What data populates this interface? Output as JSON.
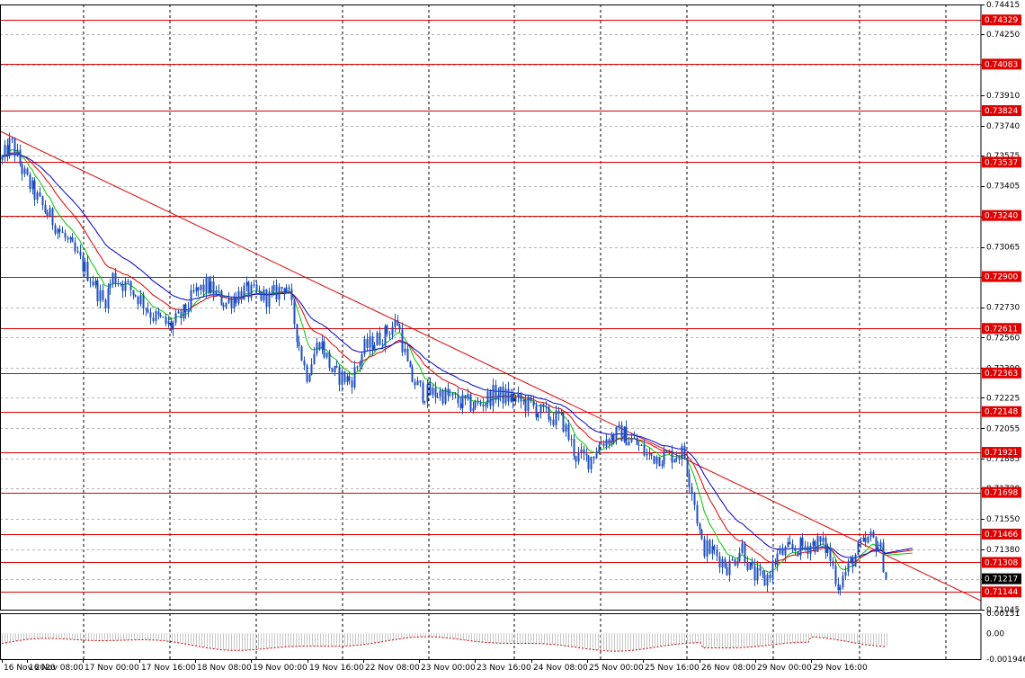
{
  "chart_data": {
    "type": "candlestick",
    "price_axis": {
      "ylim": [
        0.71045,
        0.74415
      ],
      "ticks": [
        "0.74415",
        "0.74250",
        "0.74080",
        "0.73910",
        "0.73740",
        "0.73575",
        "0.73405",
        "0.73235",
        "0.73065",
        "0.72900",
        "0.72730",
        "0.72560",
        "0.72390",
        "0.72225",
        "0.72055",
        "0.71885",
        "0.71720",
        "0.71550",
        "0.71380",
        "0.71215",
        "0.71045"
      ]
    },
    "x_ticks": [
      "16 Nov 2020",
      "16 Nov 08:00",
      "17 Nov 00:00",
      "17 Nov 16:00",
      "18 Nov 08:00",
      "19 Nov 00:00",
      "19 Nov 16:00",
      "22 Nov 08:00",
      "23 Nov 00:00",
      "23 Nov 16:00",
      "24 Nov 08:00",
      "25 Nov 00:00",
      "25 Nov 16:00",
      "26 Nov 08:00",
      "29 Nov 00:00",
      "29 Nov 16:00"
    ],
    "levels": [
      "0.74329",
      "0.74083",
      "0.73824",
      "0.73537",
      "0.73240",
      "0.72900",
      "0.72611",
      "0.72363",
      "0.72148",
      "0.71921",
      "0.71698",
      "0.71466",
      "0.71308",
      "0.71144"
    ],
    "current_price": "0.71217",
    "trendline": {
      "from": 0.7371,
      "to": 0.71095
    },
    "moving_averages": [
      {
        "color": "#00c800"
      },
      {
        "color": "#e00000"
      },
      {
        "color": "#0000d0"
      }
    ],
    "candle_color": "#1f4fbf",
    "level_color": "#e00000",
    "indicator": {
      "ylim": [
        -0.00195,
        0.00151
      ],
      "ticks": [
        "0.00151",
        "0.00",
        "-0.001946"
      ]
    }
  }
}
